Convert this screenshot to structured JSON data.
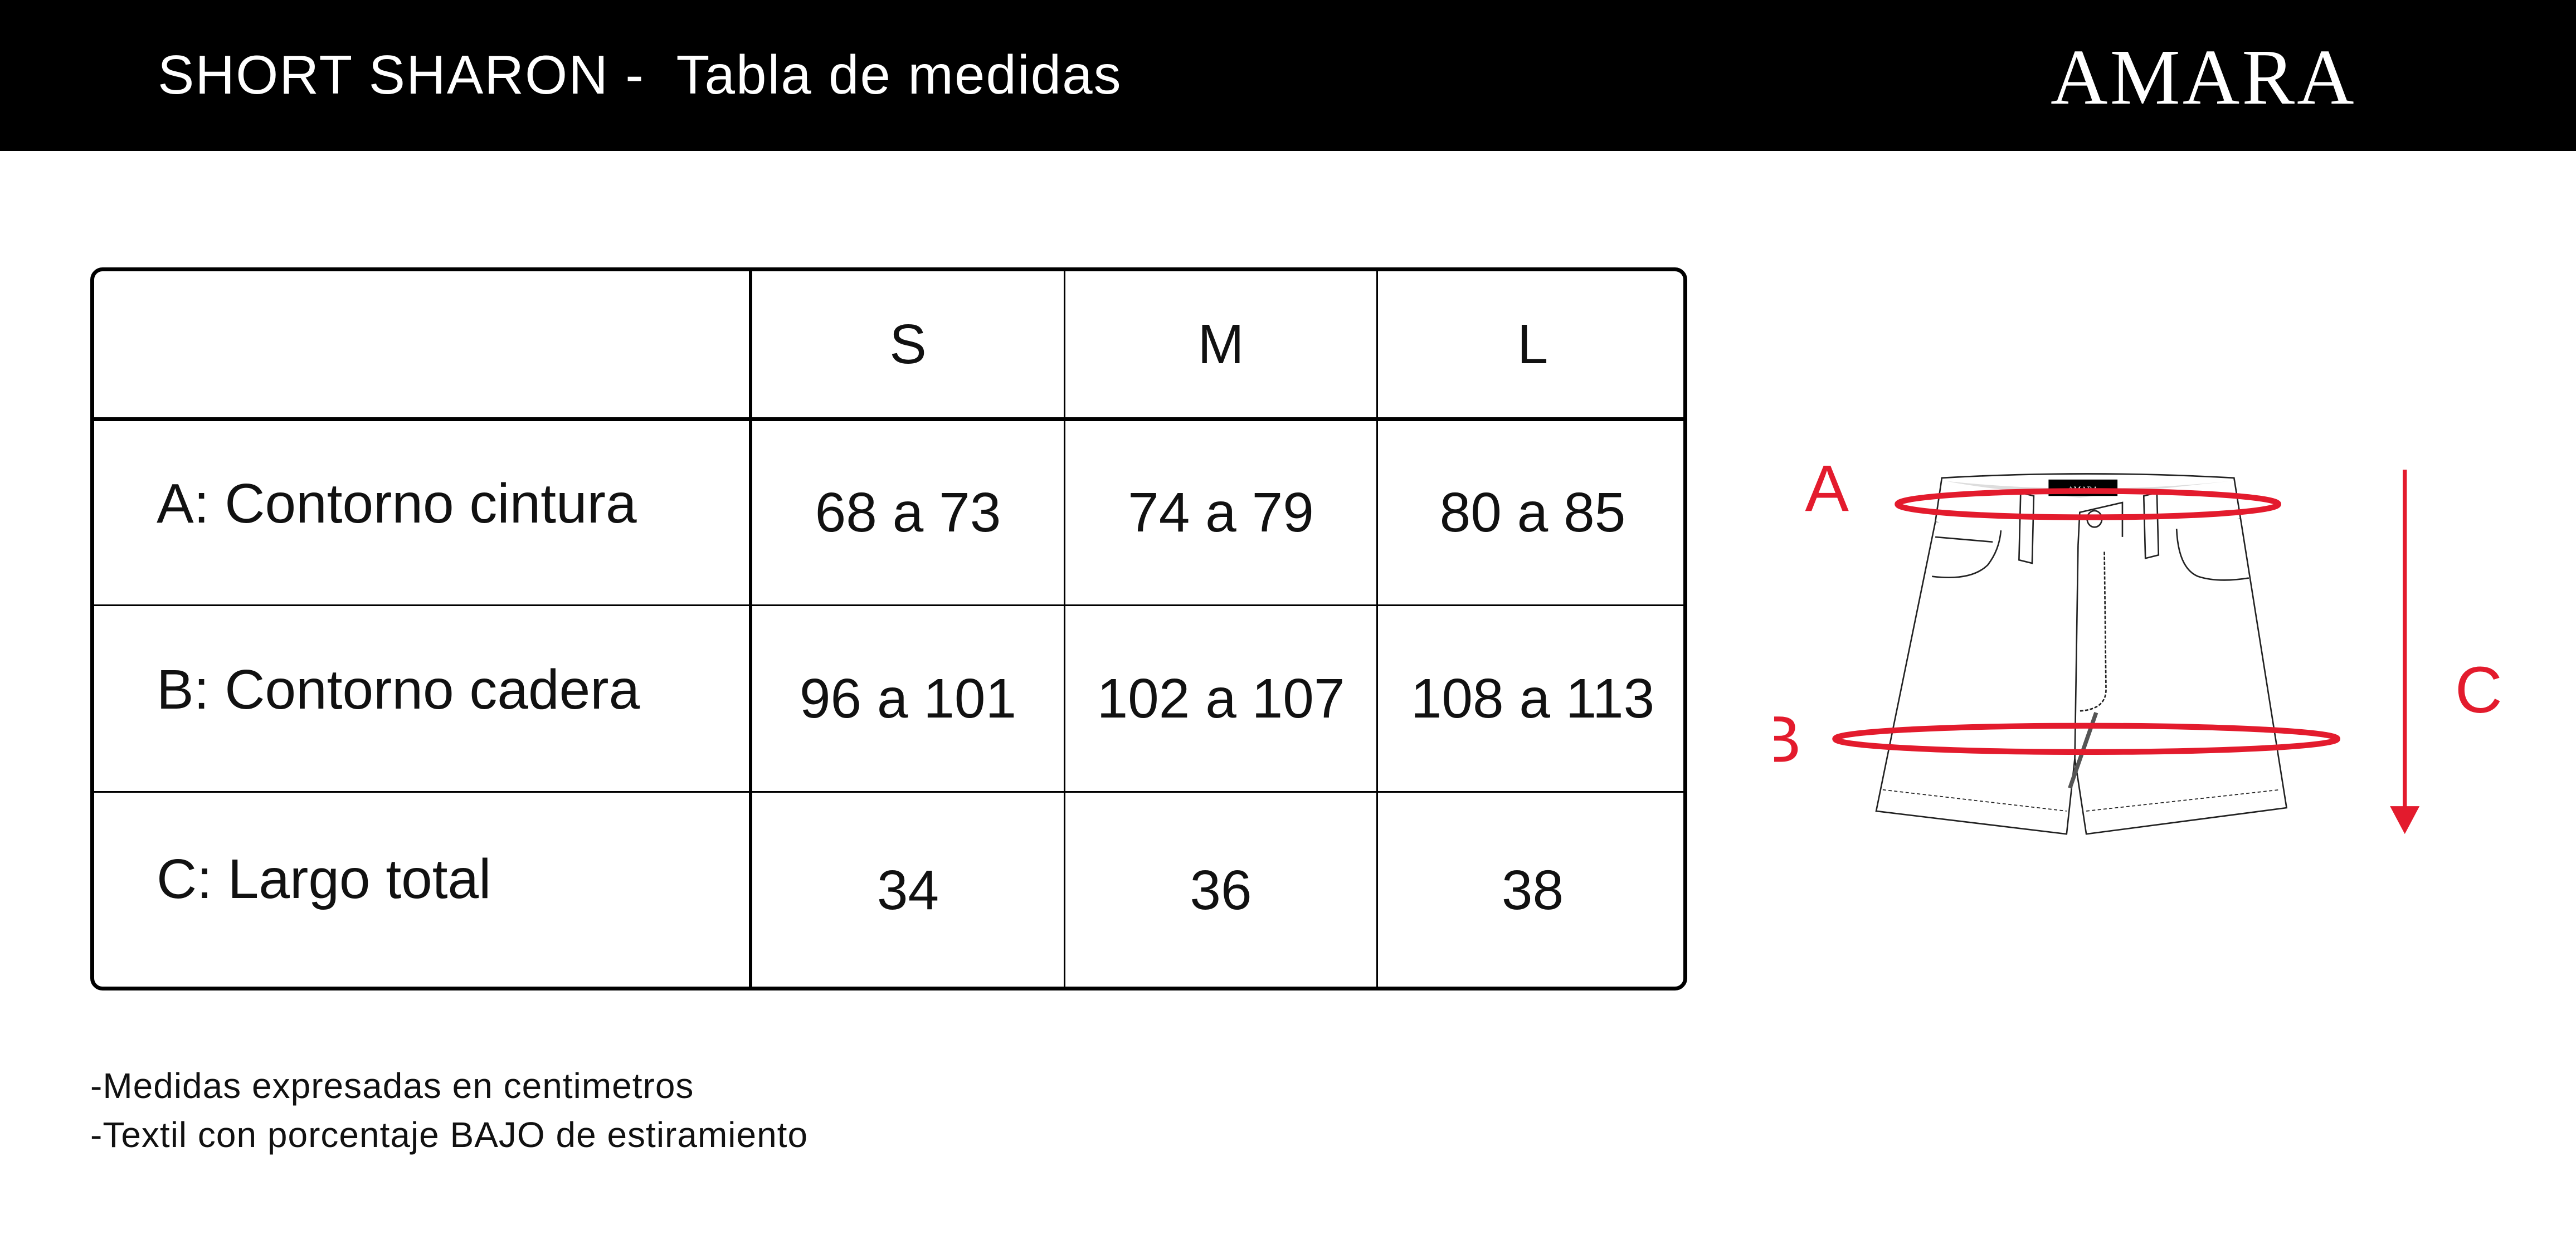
{
  "header": {
    "title": "SHORT SHARON -  Tabla de medidas",
    "brand": "AMARA"
  },
  "table": {
    "columns": [
      "",
      "S",
      "M",
      "L"
    ],
    "rows": [
      {
        "label": "A: Contorno cintura",
        "values": [
          "68 a 73",
          "74 a 79",
          "80 a 85"
        ]
      },
      {
        "label": "B: Contorno cadera",
        "values": [
          "96 a 101",
          "102 a 107",
          "108 a 113"
        ]
      },
      {
        "label": "C: Largo total",
        "values": [
          "34",
          "36",
          "38"
        ]
      }
    ]
  },
  "notes": [
    "-Medidas expresadas en centimetros",
    "-Textil con porcentaje BAJO de estiramiento"
  ],
  "diagram": {
    "labels": {
      "a": "A",
      "b": "B",
      "c": "C"
    },
    "garment_label": "AMARA",
    "accent_color": "#e31b2d"
  }
}
